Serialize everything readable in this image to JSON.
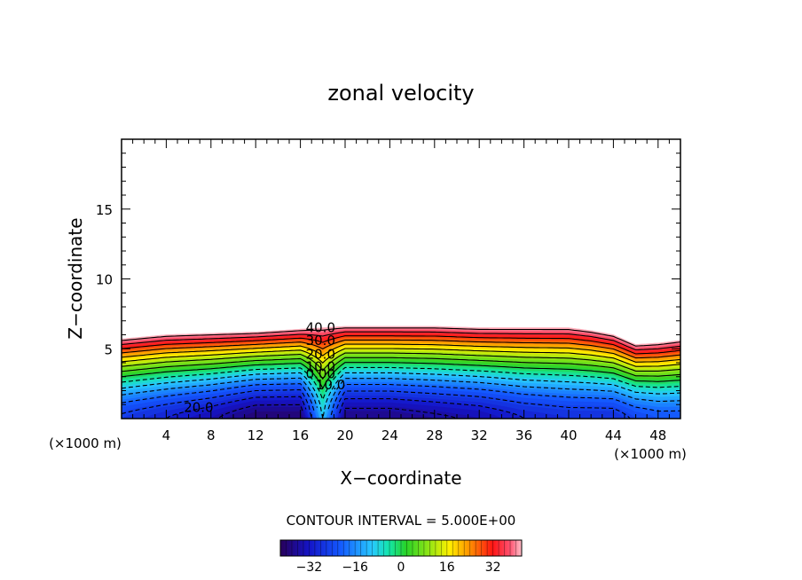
{
  "chart_data": {
    "type": "heatmap",
    "title": "zonal velocity",
    "xlabel": "X−coordinate",
    "ylabel": "Z−coordinate",
    "x_unit_left": "(×1000 m)",
    "x_unit_right": "(×1000 m)",
    "xlim": [
      0,
      50
    ],
    "ylim": [
      0,
      20
    ],
    "x_ticks": [
      "4",
      "8",
      "12",
      "16",
      "20",
      "24",
      "28",
      "32",
      "36",
      "40",
      "44",
      "48"
    ],
    "x_tick_values": [
      4,
      8,
      12,
      16,
      20,
      24,
      28,
      32,
      36,
      40,
      44,
      48
    ],
    "y_ticks": [
      "5",
      "10",
      "15"
    ],
    "y_tick_values": [
      5,
      10,
      15
    ],
    "contour_interval_text": "CONTOUR INTERVAL = 5.000E+00",
    "contour_interval": 5,
    "contour_labels": [
      {
        "text": "40.0",
        "x": 17.8,
        "z": 6.5
      },
      {
        "text": "30.0",
        "x": 17.8,
        "z": 5.6
      },
      {
        "text": "20.0",
        "x": 17.8,
        "z": 4.6
      },
      {
        "text": "10.0",
        "x": 17.8,
        "z": 3.7
      },
      {
        "text": "0.00",
        "x": 17.8,
        "z": 3.2
      },
      {
        "text": "10.0",
        "x": 18.7,
        "z": 2.4
      },
      {
        "text": "20.0",
        "x": 6.9,
        "z": 0.8
      }
    ],
    "colorbar": {
      "min": -42,
      "max": 42,
      "tick_labels": [
        "−32",
        "−16",
        "0",
        "16",
        "32"
      ],
      "tick_values": [
        -32,
        -16,
        0,
        16,
        32
      ]
    },
    "field": {
      "x_nodes": [
        0,
        4,
        8,
        12,
        16,
        18,
        20,
        24,
        28,
        32,
        36,
        40,
        42,
        44,
        46,
        48,
        50
      ],
      "top_z": [
        5.7,
        6.0,
        6.1,
        6.2,
        6.4,
        6.5,
        6.6,
        6.6,
        6.6,
        6.5,
        6.5,
        6.5,
        6.3,
        6.0,
        5.3,
        5.4,
        5.6
      ],
      "bottom_u": [
        -26,
        -30,
        -34,
        -40,
        -40,
        -10,
        -38,
        -38,
        -36,
        -34,
        -30,
        -28,
        -28,
        -28,
        -24,
        -22,
        -22
      ],
      "top_u": [
        42,
        42,
        42,
        42,
        42,
        42,
        42,
        42,
        42,
        42,
        42,
        42,
        42,
        42,
        42,
        42,
        42
      ],
      "shape_exponent": 1.5
    }
  }
}
